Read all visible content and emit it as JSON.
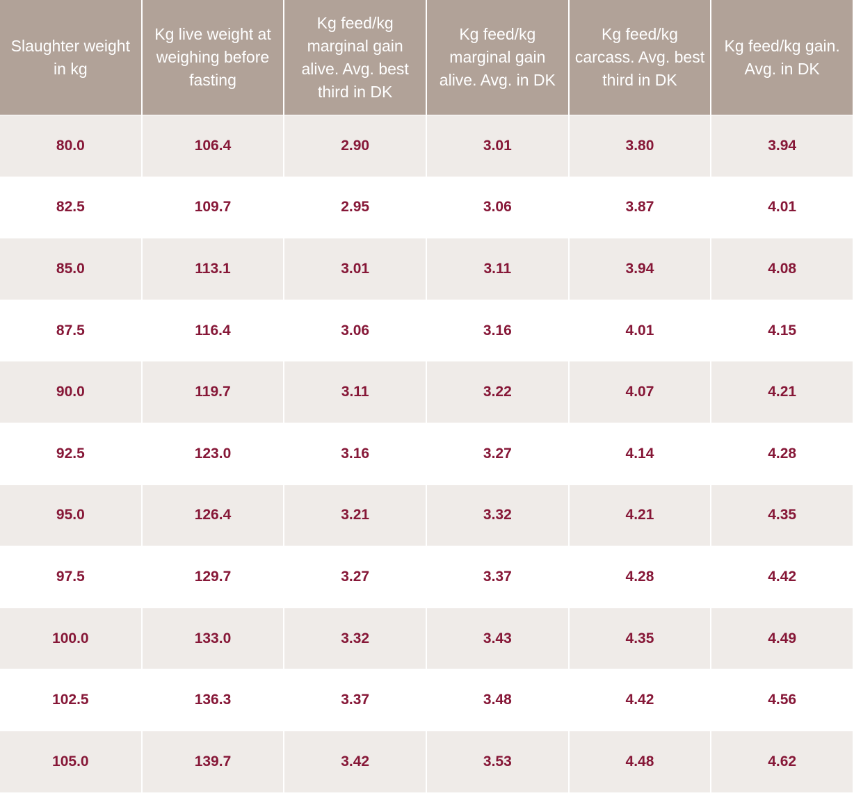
{
  "table": {
    "header": [
      "Slaughter weight in kg",
      "Kg live weight at weighing before fasting",
      "Kg feed/kg marginal gain alive. Avg. best third in DK",
      "Kg feed/kg marginal gain alive. Avg. in DK",
      "Kg feed/kg carcass. Avg. best third in DK",
      "Kg feed/kg gain. Avg. in DK"
    ],
    "rows": [
      [
        "80.0",
        "106.4",
        "2.90",
        "3.01",
        "3.80",
        "3.94"
      ],
      [
        "82.5",
        "109.7",
        "2.95",
        "3.06",
        "3.87",
        "4.01"
      ],
      [
        "85.0",
        "113.1",
        "3.01",
        "3.11",
        "3.94",
        "4.08"
      ],
      [
        "87.5",
        "116.4",
        "3.06",
        "3.16",
        "4.01",
        "4.15"
      ],
      [
        "90.0",
        "119.7",
        "3.11",
        "3.22",
        "4.07",
        "4.21"
      ],
      [
        "92.5",
        "123.0",
        "3.16",
        "3.27",
        "4.14",
        "4.28"
      ],
      [
        "95.0",
        "126.4",
        "3.21",
        "3.32",
        "4.21",
        "4.35"
      ],
      [
        "97.5",
        "129.7",
        "3.27",
        "3.37",
        "4.28",
        "4.42"
      ],
      [
        "100.0",
        "133.0",
        "3.32",
        "3.43",
        "4.35",
        "4.49"
      ],
      [
        "102.5",
        "136.3",
        "3.37",
        "3.48",
        "4.42",
        "4.56"
      ],
      [
        "105.0",
        "139.7",
        "3.42",
        "3.53",
        "4.48",
        "4.62"
      ]
    ]
  }
}
